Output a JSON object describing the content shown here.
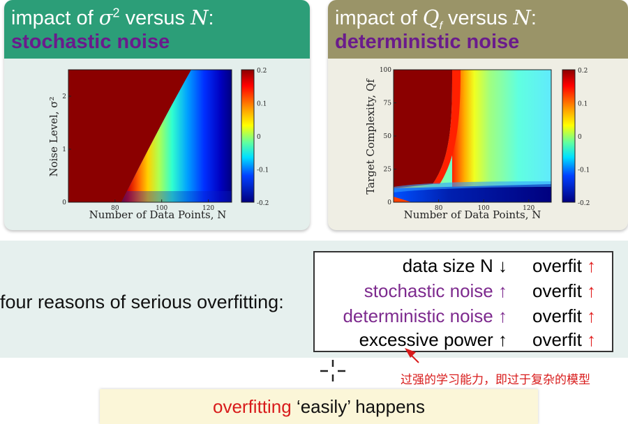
{
  "panels": [
    {
      "title_prefix": "impact of ",
      "title_symbol": "σ",
      "title_symbol_sup": "2",
      "title_mid": " versus ",
      "title_var": "N",
      "title_suffix": ":",
      "subtitle": "stochastic noise"
    },
    {
      "title_prefix": "impact of ",
      "title_symbol": "Q",
      "title_symbol_sub": "f",
      "title_mid": " versus ",
      "title_var": "N",
      "title_suffix": ":",
      "subtitle": "deterministic noise"
    }
  ],
  "chart_data": [
    {
      "type": "heatmap",
      "title": "impact of σ² versus N: stochastic noise",
      "xlabel": "Number of Data Points, N",
      "ylabel": "Noise Level, σ²",
      "x_ticks": [
        80,
        100,
        120
      ],
      "y_ticks": [
        0,
        1,
        2
      ],
      "xlim": [
        60,
        130
      ],
      "ylim": [
        0,
        2.5
      ],
      "colorbar": {
        "ticks": [
          "0.2",
          "0.1",
          "0",
          "-0.1",
          "-0.2"
        ],
        "range": [
          -0.2,
          0.2
        ],
        "colormap": "jet"
      },
      "boundary": {
        "description_points": [
          [
            80,
            0
          ],
          [
            95,
            0.9
          ],
          [
            115,
            2.5
          ]
        ]
      },
      "colors": {
        "high": "#8b0000",
        "low": "#00007f"
      }
    },
    {
      "type": "heatmap",
      "title": "impact of Qf versus N: deterministic noise",
      "xlabel": "Number of Data Points, N",
      "ylabel": "Target Complexity, Qf",
      "x_ticks": [
        80,
        100,
        120
      ],
      "y_ticks": [
        0,
        25,
        50,
        75,
        100
      ],
      "xlim": [
        60,
        130
      ],
      "ylim": [
        0,
        100
      ],
      "colorbar": {
        "ticks": [
          "0.2",
          "0.1",
          "0",
          "-0.1",
          "-0.2"
        ],
        "range": [
          -0.2,
          0.2
        ],
        "colormap": "jet"
      },
      "colors": {
        "high": "#8b0000",
        "low": "#00007f"
      }
    }
  ],
  "reasons": {
    "label": "four reasons of serious overfitting:",
    "rows": [
      {
        "cause": "data size N ↓",
        "effect": "overfit",
        "arrow": "↑",
        "color": "black"
      },
      {
        "cause": "stochastic noise ↑",
        "effect": "overfit",
        "arrow": "↑",
        "color": "purple"
      },
      {
        "cause": "deterministic noise ↑",
        "effect": "overfit",
        "arrow": "↑",
        "color": "purple"
      },
      {
        "cause": "excessive power ↑",
        "effect": "overfit",
        "arrow": "↑",
        "color": "black"
      }
    ]
  },
  "annotation": "过强的学习能力，即过于复杂的模型",
  "conclusion": {
    "highlight": "overfitting",
    "rest": " ‘easily’ happens"
  }
}
